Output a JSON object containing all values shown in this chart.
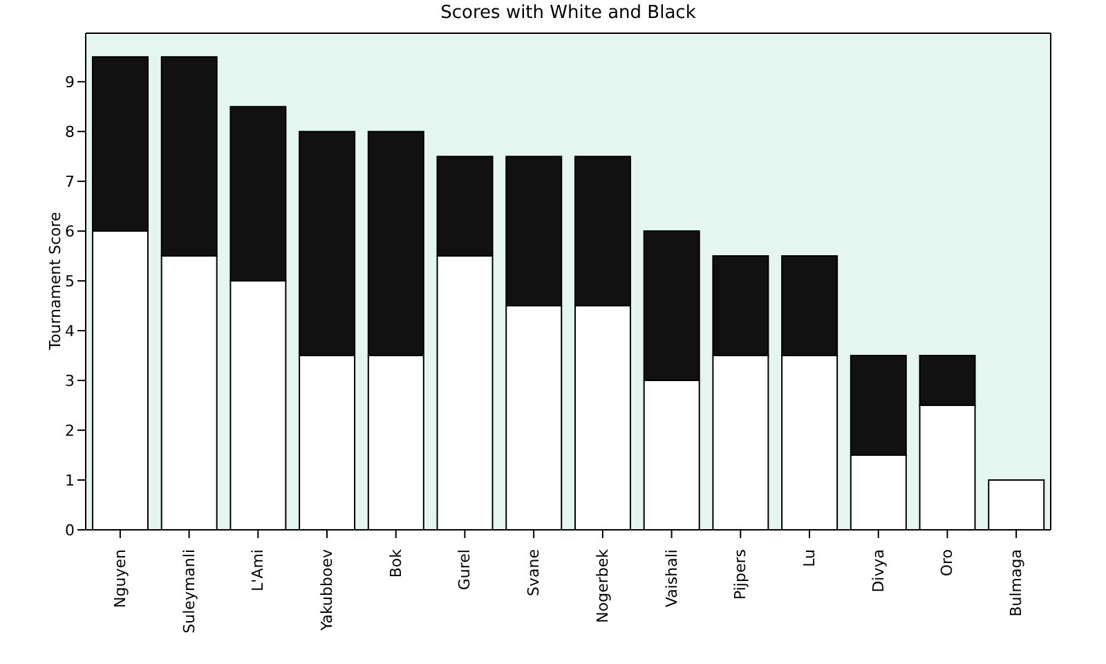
{
  "chart_data": {
    "type": "bar",
    "title": "Scores with White and Black",
    "ylabel": "Tournament Score",
    "stacked": true,
    "categories": [
      "Nguyen",
      "Suleymanli",
      "L'Ami",
      "Yakubboev",
      "Bok",
      "Gurel",
      "Svane",
      "Nogerbek",
      "Vaishali",
      "Pijpers",
      "Lu",
      "Divya",
      "Oro",
      "Bulmaga"
    ],
    "series": [
      {
        "color": "#ffffff",
        "values": [
          6,
          5.5,
          5,
          3.5,
          3.5,
          5.5,
          4.5,
          4.5,
          3,
          3.5,
          3.5,
          1.5,
          2.5,
          1
        ]
      },
      {
        "color": "#111111",
        "values": [
          3.5,
          4,
          3.5,
          4.5,
          4.5,
          2,
          3,
          3,
          3,
          2,
          2,
          2,
          1,
          0
        ]
      }
    ],
    "ylim": [
      0,
      9.975
    ],
    "yticks": [
      0,
      1,
      2,
      3,
      4,
      5,
      6,
      7,
      8,
      9
    ],
    "grid": false
  }
}
